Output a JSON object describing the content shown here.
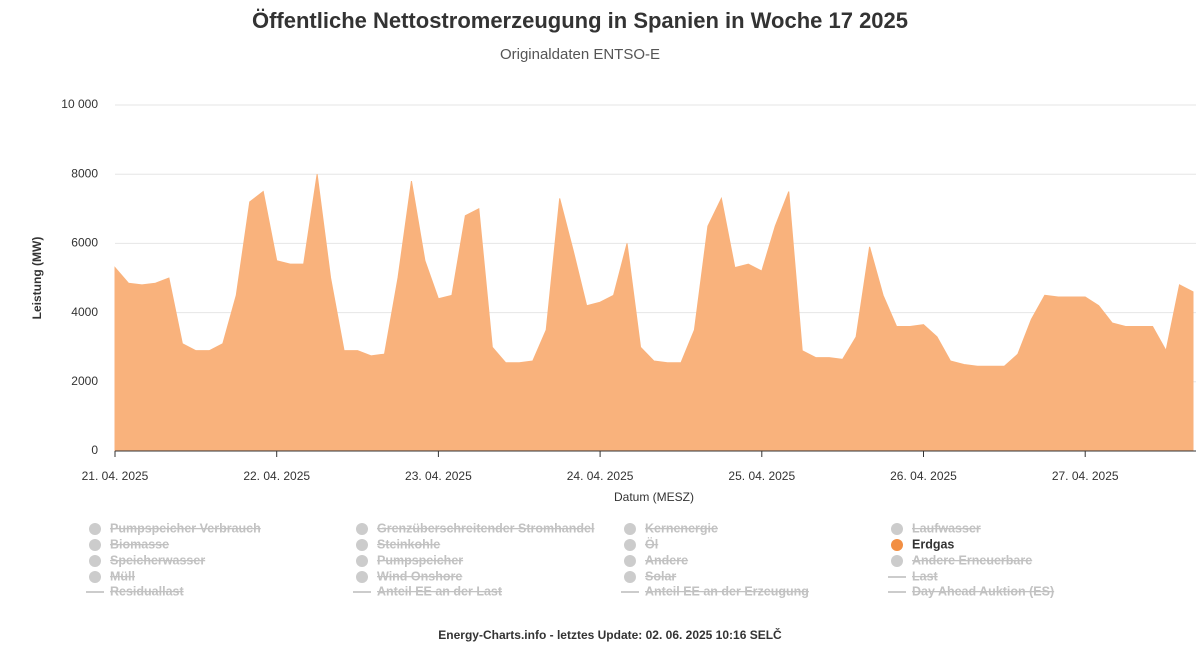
{
  "chart_data": {
    "type": "area",
    "title": "Öffentliche Nettostromerzeugung in Spanien in Woche 17 2025",
    "subtitle": "Originaldaten ENTSO-E",
    "x_label": "Datum (MESZ)",
    "y_label": "Leistung (MW)",
    "credit": "Energy-Charts.info - letztes Update: 02. 06. 2025 10:16 SELČ",
    "xlim": [
      "2025-04-21T00:00",
      "2025-04-27T16:00"
    ],
    "xticks": [
      {
        "value": "2025-04-21T00:00",
        "label": "21. 04. 2025"
      },
      {
        "value": "2025-04-22T00:00",
        "label": "22. 04. 2025"
      },
      {
        "value": "2025-04-23T00:00",
        "label": "23. 04. 2025"
      },
      {
        "value": "2025-04-24T00:00",
        "label": "24. 04. 2025"
      },
      {
        "value": "2025-04-25T00:00",
        "label": "25. 04. 2025"
      },
      {
        "value": "2025-04-26T00:00",
        "label": "26. 04. 2025"
      },
      {
        "value": "2025-04-27T00:00",
        "label": "27. 04. 2025"
      }
    ],
    "ylim": [
      0,
      10000
    ],
    "yticks": [
      0,
      2000,
      4000,
      6000,
      8000,
      {
        "value": 10000,
        "label": "10 000"
      }
    ],
    "grid": true,
    "x": [
      "2025-04-21T00:00",
      "2025-04-21T02:00",
      "2025-04-21T04:00",
      "2025-04-21T06:00",
      "2025-04-21T08:00",
      "2025-04-21T10:00",
      "2025-04-21T12:00",
      "2025-04-21T14:00",
      "2025-04-21T16:00",
      "2025-04-21T18:00",
      "2025-04-21T20:00",
      "2025-04-21T22:00",
      "2025-04-22T00:00",
      "2025-04-22T02:00",
      "2025-04-22T04:00",
      "2025-04-22T06:00",
      "2025-04-22T08:00",
      "2025-04-22T10:00",
      "2025-04-22T12:00",
      "2025-04-22T14:00",
      "2025-04-22T16:00",
      "2025-04-22T18:00",
      "2025-04-22T20:00",
      "2025-04-22T22:00",
      "2025-04-23T00:00",
      "2025-04-23T02:00",
      "2025-04-23T04:00",
      "2025-04-23T06:00",
      "2025-04-23T08:00",
      "2025-04-23T10:00",
      "2025-04-23T12:00",
      "2025-04-23T14:00",
      "2025-04-23T16:00",
      "2025-04-23T18:00",
      "2025-04-23T20:00",
      "2025-04-23T22:00",
      "2025-04-24T00:00",
      "2025-04-24T02:00",
      "2025-04-24T04:00",
      "2025-04-24T06:00",
      "2025-04-24T08:00",
      "2025-04-24T10:00",
      "2025-04-24T12:00",
      "2025-04-24T14:00",
      "2025-04-24T16:00",
      "2025-04-24T18:00",
      "2025-04-24T20:00",
      "2025-04-24T22:00",
      "2025-04-25T00:00",
      "2025-04-25T02:00",
      "2025-04-25T04:00",
      "2025-04-25T06:00",
      "2025-04-25T08:00",
      "2025-04-25T10:00",
      "2025-04-25T12:00",
      "2025-04-25T14:00",
      "2025-04-25T16:00",
      "2025-04-25T18:00",
      "2025-04-25T20:00",
      "2025-04-25T22:00",
      "2025-04-26T00:00",
      "2025-04-26T02:00",
      "2025-04-26T04:00",
      "2025-04-26T06:00",
      "2025-04-26T08:00",
      "2025-04-26T10:00",
      "2025-04-26T12:00",
      "2025-04-26T14:00",
      "2025-04-26T16:00",
      "2025-04-26T18:00",
      "2025-04-26T20:00",
      "2025-04-26T22:00",
      "2025-04-27T00:00",
      "2025-04-27T02:00",
      "2025-04-27T04:00",
      "2025-04-27T06:00",
      "2025-04-27T08:00",
      "2025-04-27T10:00",
      "2025-04-27T12:00",
      "2025-04-27T14:00",
      "2025-04-27T16:00"
    ],
    "series": [
      {
        "name": "Erdgas",
        "color": "#f9b27c",
        "values": [
          5300,
          4850,
          4800,
          4850,
          5000,
          3100,
          2900,
          2900,
          3100,
          4500,
          7200,
          7500,
          5500,
          5400,
          5400,
          8000,
          5000,
          2900,
          2900,
          2750,
          2800,
          5000,
          7800,
          5500,
          4400,
          4500,
          6800,
          7000,
          3000,
          2550,
          2550,
          2600,
          3500,
          7300,
          5800,
          4200,
          4300,
          4500,
          6000,
          3000,
          2600,
          2550,
          2550,
          3500,
          6500,
          7300,
          5300,
          5400,
          5200,
          6500,
          7500,
          2900,
          2700,
          2700,
          2650,
          3300,
          5900,
          4500,
          3600,
          3600,
          3650,
          3300,
          2600,
          2500,
          2450,
          2450,
          2450,
          2800,
          3800,
          4500,
          4450,
          4450,
          4450,
          4200,
          3700,
          3600,
          3600,
          3600,
          2900,
          4800,
          4600
        ]
      }
    ],
    "hidden_series": [
      {
        "name": "Pumpspeicher Verbrauch",
        "marker": "dot"
      },
      {
        "name": "Grenzüberschreitender Stromhandel",
        "marker": "dot"
      },
      {
        "name": "Kernenergie",
        "marker": "dot"
      },
      {
        "name": "Laufwasser",
        "marker": "dot"
      },
      {
        "name": "Biomasse",
        "marker": "dot"
      },
      {
        "name": "Steinkohle",
        "marker": "dot"
      },
      {
        "name": "Öl",
        "marker": "dot"
      },
      {
        "name": "Speicherwasser",
        "marker": "dot"
      },
      {
        "name": "Pumpspeicher",
        "marker": "dot"
      },
      {
        "name": "Andere",
        "marker": "dot"
      },
      {
        "name": "Andere Erneuerbare",
        "marker": "dot"
      },
      {
        "name": "Müll",
        "marker": "dot"
      },
      {
        "name": "Wind Onshore",
        "marker": "dot"
      },
      {
        "name": "Solar",
        "marker": "dot"
      },
      {
        "name": "Last",
        "marker": "line"
      },
      {
        "name": "Residuallast",
        "marker": "line"
      },
      {
        "name": "Anteil EE an der Last",
        "marker": "line"
      },
      {
        "name": "Anteil EE an der Erzeugung",
        "marker": "line"
      },
      {
        "name": "Day Ahead Auktion (ES)",
        "marker": "line"
      }
    ]
  }
}
